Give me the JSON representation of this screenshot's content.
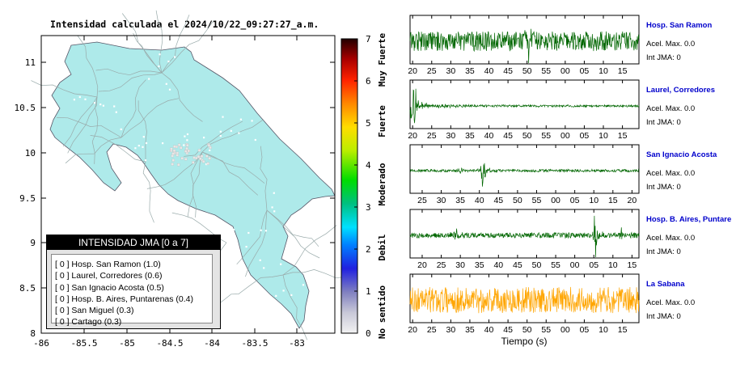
{
  "map": {
    "title": "Intensidad calculada el 2024/10/22_09:27:27_a.m.",
    "x_ticks": [
      "-86",
      "-85.5",
      "-85",
      "-84.5",
      "-84",
      "-83.5",
      "-83"
    ],
    "y_ticks": [
      "11",
      "10.5",
      "10",
      "9.5",
      "9",
      "8.5",
      "8"
    ],
    "land_color": "#aeeaea"
  },
  "colorbar": {
    "ticks": [
      "0",
      "1",
      "2",
      "3",
      "4",
      "5",
      "6",
      "7"
    ],
    "labels": [
      "No sentido",
      "Debil",
      "Moderado",
      "Fuerte",
      "Muy Fuerte"
    ]
  },
  "legend": {
    "header": "INTENSIDAD JMA [0 a 7]",
    "items": [
      "[ 0 ]  Hosp. San Ramon (1.0)",
      "[ 0 ]  Laurel, Corredores (0.6)",
      "[ 0 ]  San Ignacio Acosta (0.5)",
      "[ 0 ]  Hosp. B. Aires, Puntarenas (0.4)",
      "[ 0 ]  San Miguel (0.3)",
      "[ 0 ]  Cartago (0.3)"
    ]
  },
  "stations": [
    {
      "name": "Hosp. San Ramon",
      "acel": "Acel. Max. 0.0",
      "int": "Int JMA: 0"
    },
    {
      "name": "Laurel, Corredores",
      "acel": "Acel. Max. 0.0",
      "int": "Int JMA: 0"
    },
    {
      "name": "San Ignacio Acosta",
      "acel": "Acel. Max. 0.0",
      "int": "Int JMA: 0"
    },
    {
      "name": "Hosp. B. Aires, Puntare",
      "acel": "Acel. Max. 0.0",
      "int": "Int JMA: 0"
    },
    {
      "name": "La Sabana",
      "acel": "Acel. Max. 0.0",
      "int": "Int JMA: 0"
    }
  ],
  "chart_data": {
    "type": "line",
    "xlabel": "Tiempo (s)",
    "colors": {
      "trace": "#006600",
      "highlight": "#ffa500"
    },
    "panels": [
      {
        "station": "Hosp. San Ramon",
        "ticks": [
          "20",
          "25",
          "30",
          "35",
          "40",
          "45",
          "50",
          "55",
          "00",
          "05",
          "10",
          "15"
        ],
        "tick_offset": 0,
        "events": [
          {
            "t": 0.52,
            "amp": 1.0
          }
        ],
        "noise": 0.45,
        "decay": false,
        "color": "#006600"
      },
      {
        "station": "Laurel, Corredores",
        "ticks": [
          "20",
          "25",
          "30",
          "35",
          "40",
          "45",
          "50",
          "55",
          "00",
          "05",
          "10",
          "15"
        ],
        "tick_offset": 0,
        "events": [
          {
            "t": 0.02,
            "amp": 1.0
          }
        ],
        "noise": 0.05,
        "decay": true,
        "color": "#006600"
      },
      {
        "station": "San Ignacio Acosta",
        "ticks": [
          "25",
          "30",
          "35",
          "40",
          "45",
          "50",
          "55",
          "00",
          "05",
          "10",
          "15",
          "20"
        ],
        "tick_offset": 0.5,
        "events": [
          {
            "t": 0.32,
            "amp": 1.0
          },
          {
            "t": 0.22,
            "amp": 0.15
          }
        ],
        "noise": 0.06,
        "decay": false,
        "color": "#006600"
      },
      {
        "station": "Hosp. B. Aires, Puntare",
        "ticks": [
          "20",
          "25",
          "30",
          "35",
          "40",
          "45",
          "50",
          "55",
          "00",
          "05",
          "10",
          "15"
        ],
        "tick_offset": 0.5,
        "events": [
          {
            "t": 0.81,
            "amp": 1.0
          },
          {
            "t": 0.2,
            "amp": 0.35
          },
          {
            "t": 0.92,
            "amp": 0.3
          }
        ],
        "noise": 0.12,
        "decay": false,
        "color": "#006600"
      },
      {
        "station": "La Sabana",
        "ticks": [
          "20",
          "25",
          "30",
          "35",
          "40",
          "45",
          "50",
          "55",
          "00",
          "05",
          "10",
          "15"
        ],
        "tick_offset": 0,
        "events": [],
        "noise": 0.6,
        "decay": false,
        "color": "#ffa500"
      }
    ]
  }
}
